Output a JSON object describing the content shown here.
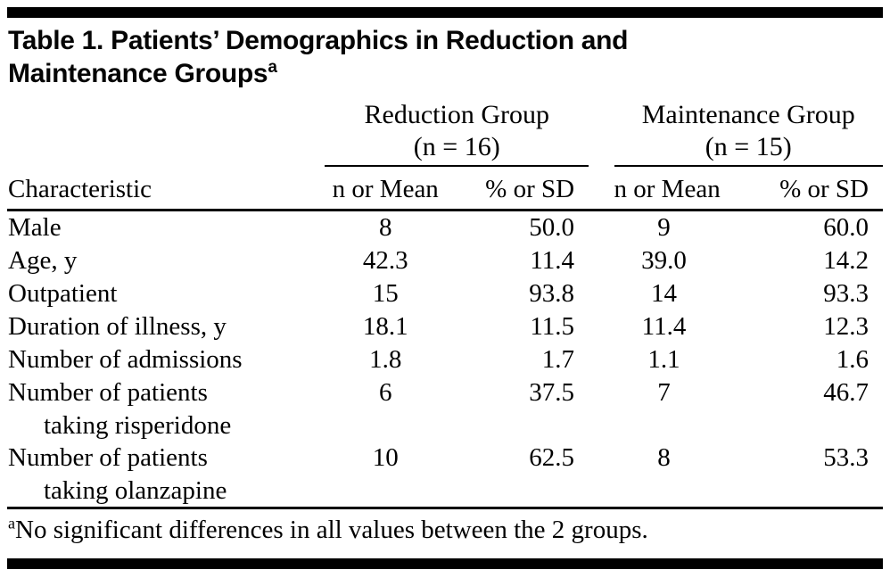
{
  "page": {
    "title_line1": "Table 1. Patients’ Demographics in Reduction and",
    "title_line2": "Maintenance Groups",
    "title_superscript": "a",
    "footnote_superscript": "a",
    "footnote_text": "No significant differences in all values between the 2 groups."
  },
  "table": {
    "characteristic_header": "Characteristic",
    "groups": [
      {
        "name": "Reduction Group",
        "n_label": "(n = 16)"
      },
      {
        "name": "Maintenance Group",
        "n_label": "(n = 15)"
      }
    ],
    "subheaders": [
      "n or Mean",
      "% or SD",
      "n or Mean",
      "% or SD"
    ],
    "rows": [
      {
        "label": "Male",
        "values": [
          "8",
          "50.0",
          "9",
          "60.0"
        ]
      },
      {
        "label": "Age, y",
        "values": [
          "42.3",
          "11.4",
          "39.0",
          "14.2"
        ]
      },
      {
        "label": "Outpatient",
        "values": [
          "15",
          "93.8",
          "14",
          "93.3"
        ]
      },
      {
        "label": "Duration of illness, y",
        "values": [
          "18.1",
          "11.5",
          "11.4",
          "12.3"
        ]
      },
      {
        "label": "Number of admissions",
        "values": [
          "1.8",
          "1.7",
          "1.1",
          "1.6"
        ]
      },
      {
        "label": "Number of patients",
        "label2": "taking risperidone",
        "values": [
          "6",
          "37.5",
          "7",
          "46.7"
        ]
      },
      {
        "label": "Number of patients",
        "label2": "taking olanzapine",
        "values": [
          "10",
          "62.5",
          "8",
          "53.3"
        ]
      }
    ]
  }
}
